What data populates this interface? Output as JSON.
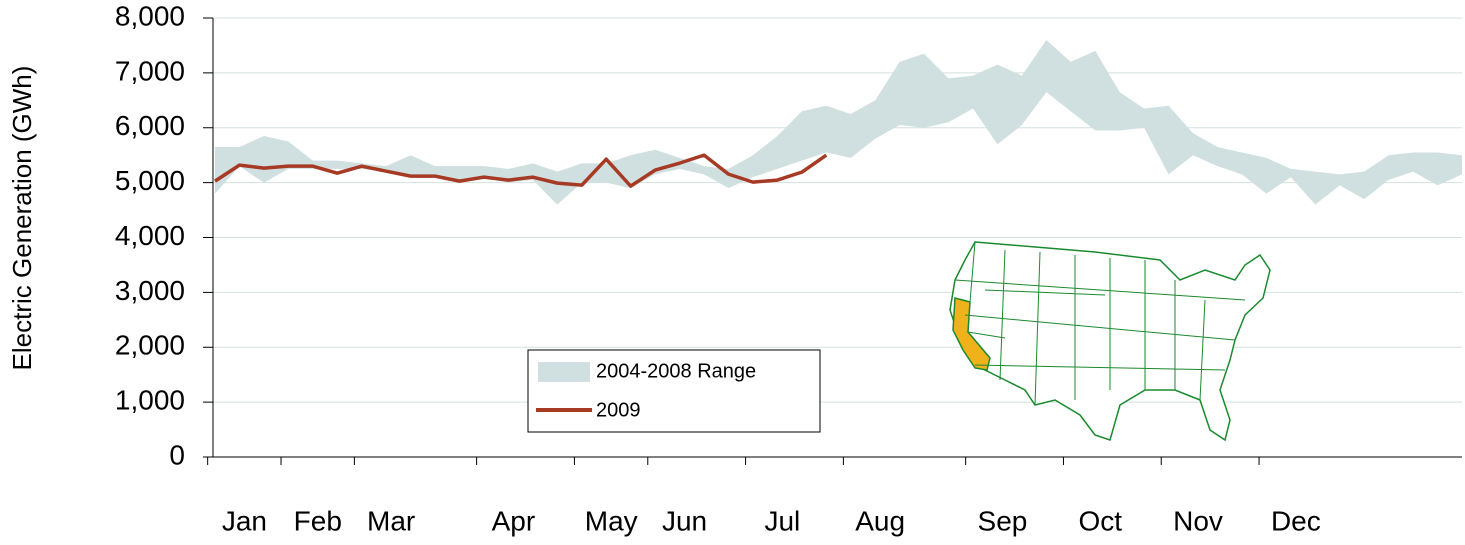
{
  "chart_data": {
    "type": "line",
    "y_label": "Electric Generation (GWh)",
    "categories": [
      null,
      "Jan",
      null,
      null,
      "Feb",
      null,
      null,
      "Mar",
      null,
      null,
      null,
      null,
      "Apr",
      null,
      null,
      null,
      "May",
      null,
      null,
      "Jun",
      null,
      null,
      null,
      "Jul",
      null,
      null,
      null,
      "Aug",
      null,
      null,
      null,
      null,
      "Sep",
      null,
      null,
      null,
      "Oct",
      null,
      null,
      null,
      "Nov",
      null,
      null,
      null,
      "Dec",
      null,
      null,
      null,
      null,
      null,
      null,
      null
    ],
    "ylim": [
      0,
      8000
    ],
    "yticks": [
      0,
      {
        "value": 1000,
        "label": "1,000"
      },
      {
        "value": 2000,
        "label": "2,000"
      },
      {
        "value": 3000,
        "label": "3,000"
      },
      {
        "value": 4000,
        "label": "4,000"
      },
      {
        "value": 5000,
        "label": "5,000"
      },
      {
        "value": 6000,
        "label": "6,000"
      },
      {
        "value": 7000,
        "label": "7,000"
      },
      {
        "value": 8000,
        "label": "8,000"
      }
    ],
    "grid": true,
    "series": [
      {
        "name": "2004-2008 Range",
        "color": "#d0dfe0",
        "upper": [
          5650,
          5650,
          5850,
          5750,
          5400,
          5400,
          5350,
          5300,
          5500,
          5300,
          5300,
          5300,
          5250,
          5350,
          5200,
          5350,
          5350,
          5500,
          5600,
          5450,
          5300,
          5250,
          5500,
          5850,
          6300,
          6400,
          6250,
          6500,
          7200,
          7350,
          6900,
          6950,
          7150,
          6950,
          7600,
          7200,
          7400,
          6650,
          6350,
          6400,
          5900,
          5650,
          5550,
          5450,
          5250,
          5200,
          5150,
          5200,
          5500,
          5550,
          5550,
          5500
        ],
        "lower": [
          4800,
          5300,
          5000,
          5250,
          5250,
          5250,
          5250,
          5200,
          5150,
          5100,
          5000,
          5100,
          5000,
          5050,
          4600,
          5000,
          5000,
          4900,
          5150,
          5250,
          5150,
          4900,
          5100,
          5250,
          5400,
          5550,
          5450,
          5800,
          6050,
          6000,
          6100,
          6350,
          5700,
          6050,
          6650,
          6300,
          5950,
          5950,
          6000,
          5150,
          5500,
          5300,
          5150,
          4800,
          5100,
          4600,
          4950,
          4700,
          5050,
          5200,
          4950,
          5150
        ]
      },
      {
        "name": "2009",
        "color": "#a63a24",
        "values": [
          5027,
          5319,
          5264,
          5300,
          5300,
          5173,
          5300,
          5209,
          5118,
          5118,
          5027,
          5100,
          5046,
          5100,
          4991,
          4954,
          5428,
          4936,
          5228,
          5355,
          5501,
          5155,
          5009,
          5046,
          5191,
          5501,
          null,
          null,
          null,
          null,
          null,
          null,
          null,
          null,
          null,
          null,
          null,
          null,
          null,
          null,
          null,
          null,
          null,
          null,
          null,
          null,
          null,
          null,
          null,
          null,
          null,
          null
        ]
      }
    ]
  }
}
